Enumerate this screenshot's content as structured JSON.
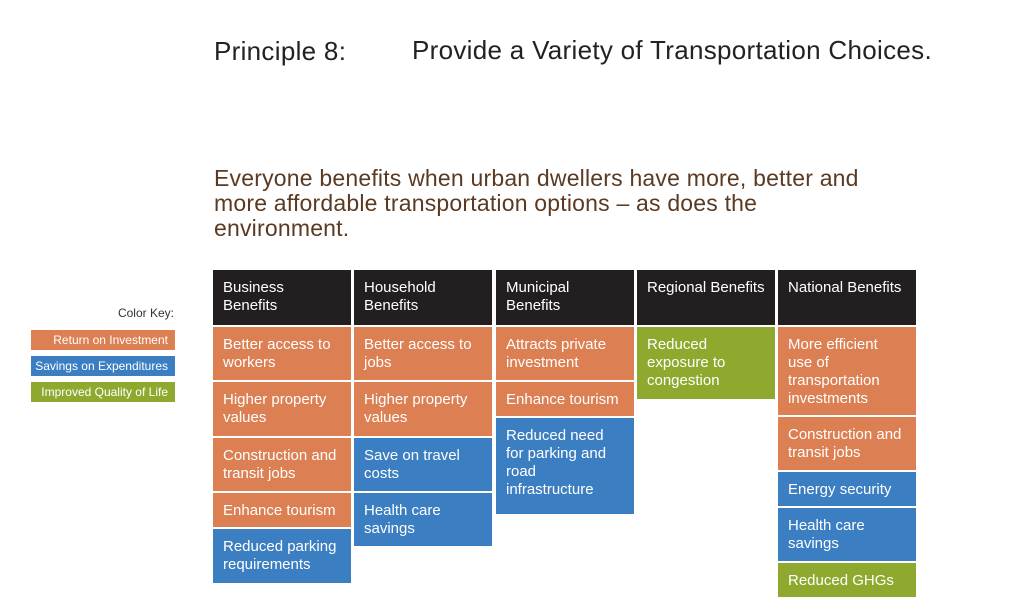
{
  "header": {
    "principle": "Principle 8:",
    "title": "Provide a Variety of Transportation Choices."
  },
  "subtitle": "Everyone benefits when urban dwellers have more, better and more affordable transportation options – as does the environment.",
  "color_key": {
    "title": "Color Key:",
    "items": [
      {
        "label": "Return on Investment",
        "color": "#dc7f52"
      },
      {
        "label": "Savings on Expenditures",
        "color": "#3b7ec1"
      },
      {
        "label": "Improved Quality of Life",
        "color": "#8fa92f"
      }
    ]
  },
  "columns": [
    {
      "header": "Business Benefits",
      "cells": [
        {
          "text": "Better access to workers",
          "type": "orange"
        },
        {
          "text": "Higher property values",
          "type": "orange"
        },
        {
          "text": "Construction and transit jobs",
          "type": "orange"
        },
        {
          "text": "Enhance tourism",
          "type": "orange"
        },
        {
          "text": "Reduced parking requirements",
          "type": "blue"
        }
      ]
    },
    {
      "header": "Household Benefits",
      "cells": [
        {
          "text": "Better access to jobs",
          "type": "orange"
        },
        {
          "text": "Higher property values",
          "type": "orange"
        },
        {
          "text": "Save on travel costs",
          "type": "blue"
        },
        {
          "text": "Health care savings",
          "type": "blue"
        }
      ]
    },
    {
      "header": "Municipal Benefits",
      "cells": [
        {
          "text": "Attracts private investment",
          "type": "orange"
        },
        {
          "text": "Enhance tourism",
          "type": "orange"
        },
        {
          "text": "Reduced need for parking and road infrastructure",
          "type": "blue"
        }
      ]
    },
    {
      "header": "Regional Benefits",
      "cells": [
        {
          "text": "Reduced exposure to congestion",
          "type": "green"
        }
      ]
    },
    {
      "header": "National Benefits",
      "cells": [
        {
          "text": "More efficient use of transportation investments",
          "type": "orange"
        },
        {
          "text": "Construction and transit jobs",
          "type": "orange"
        },
        {
          "text": "Energy security",
          "type": "blue"
        },
        {
          "text": "Health care savings",
          "type": "blue"
        },
        {
          "text": "Reduced GHGs",
          "type": "green"
        }
      ]
    }
  ]
}
